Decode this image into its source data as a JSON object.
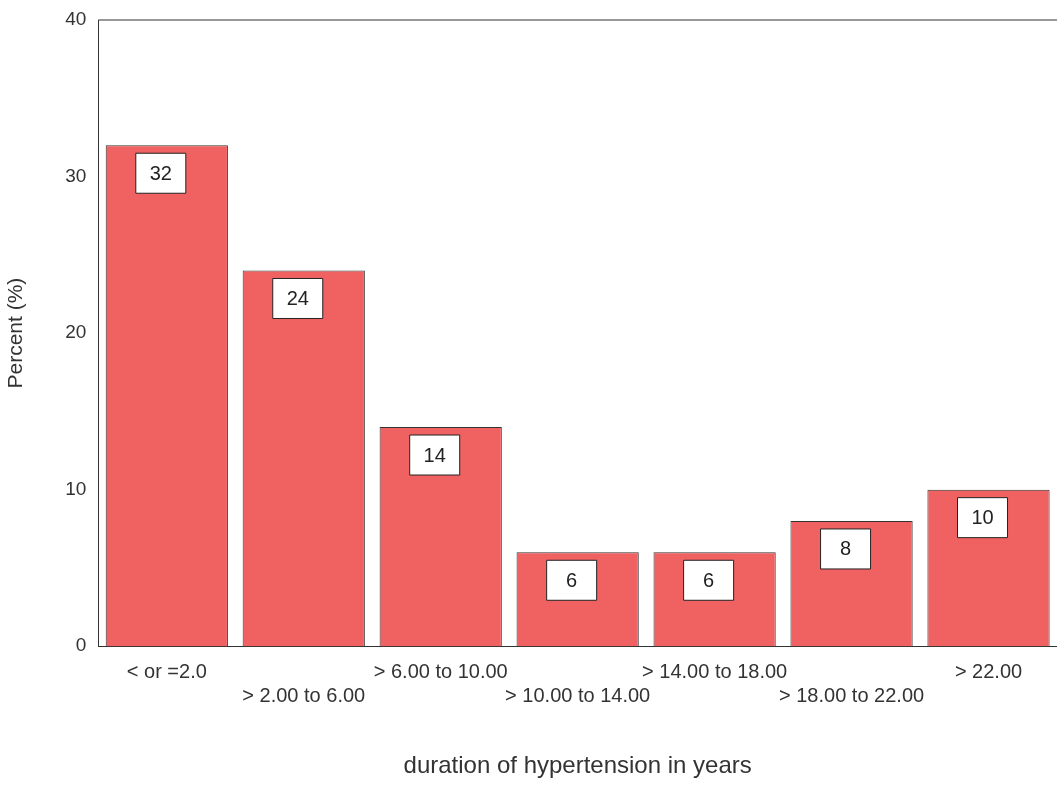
{
  "chart_data": {
    "type": "bar",
    "xlabel": "duration of hypertension in years",
    "ylabel": "Percent (%)",
    "categories": [
      "< or =2.0",
      "> 2.00 to 6.00",
      "> 6.00 to 10.00",
      "> 10.00 to 14.00",
      "> 14.00 to 18.00",
      "> 18.00 to 22.00",
      "> 22.00"
    ],
    "values": [
      32,
      24,
      14,
      6,
      6,
      8,
      10
    ],
    "color": "#f06262",
    "ylim": [
      0,
      40
    ],
    "yticks": [
      0,
      10,
      20,
      30,
      40
    ],
    "grid": false,
    "legend": false,
    "data_labels": true
  }
}
